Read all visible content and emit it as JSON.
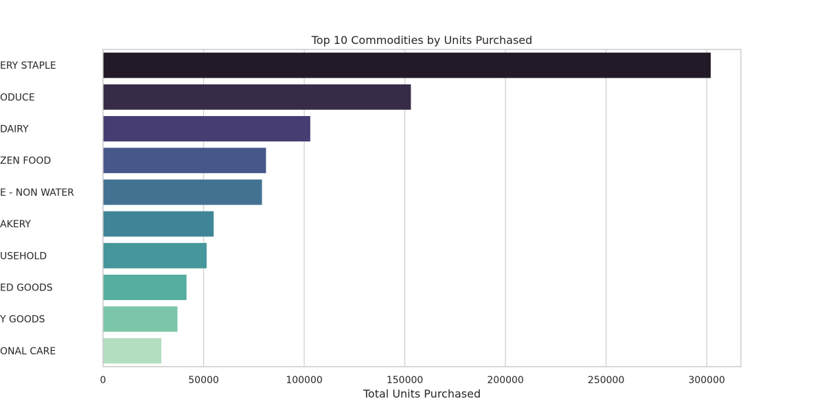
{
  "chart_data": {
    "type": "bar",
    "orientation": "horizontal",
    "title": "Top 10 Commodities by Units Purchased",
    "xlabel": "Total Units Purchased",
    "ylabel": "",
    "categories": [
      "ERY STAPLE",
      "ODUCE",
      "DAIRY",
      "ZEN FOOD",
      "E - NON WATER",
      "AKERY",
      "USEHOLD",
      "ED GOODS",
      "Y GOODS",
      "ONAL CARE"
    ],
    "values": [
      302000,
      153000,
      103000,
      81000,
      79000,
      55000,
      51500,
      41500,
      37000,
      29000
    ],
    "colors": [
      "#231a27",
      "#372c48",
      "#463e73",
      "#48578a",
      "#437192",
      "#408597",
      "#45979b",
      "#55ae9f",
      "#7bc6a8",
      "#b3debf"
    ],
    "xlim": [
      0,
      317000
    ],
    "xticks": [
      0,
      50000,
      100000,
      150000,
      200000,
      250000,
      300000
    ],
    "xtick_labels": [
      "0",
      "50000",
      "100000",
      "150000",
      "200000",
      "250000",
      "300000"
    ],
    "grid": "vertical",
    "legend": "none"
  }
}
